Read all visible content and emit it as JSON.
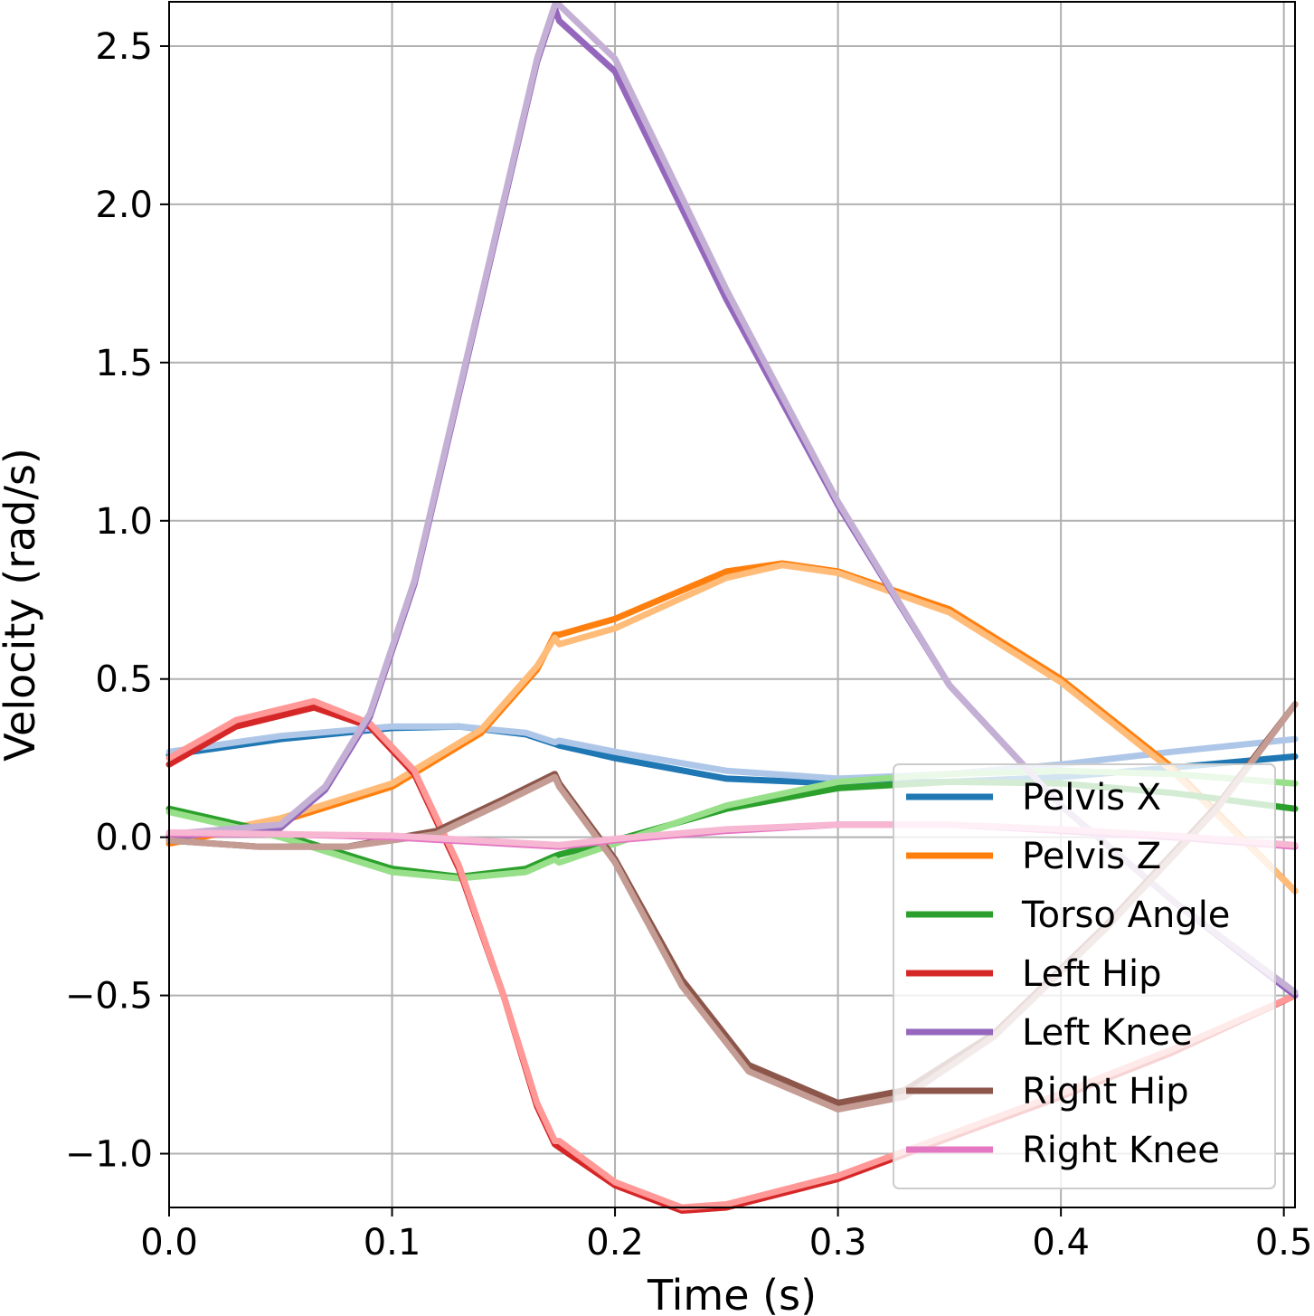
{
  "chart_data": {
    "type": "line",
    "xlabel": "Time (s)",
    "ylabel": "Velocity (rad/s)",
    "xlim": [
      0.0,
      0.505
    ],
    "ylim": [
      -1.17,
      2.64
    ],
    "xticks": [
      0.0,
      0.1,
      0.2,
      0.3,
      0.4,
      0.5
    ],
    "xtick_labels": [
      "0.0",
      "0.1",
      "0.2",
      "0.3",
      "0.4",
      "0.5"
    ],
    "yticks": [
      -1.0,
      -0.5,
      0.0,
      0.5,
      1.0,
      1.5,
      2.0,
      2.5
    ],
    "ytick_labels": [
      "−1.0",
      "−0.5",
      "0.0",
      "0.5",
      "1.0",
      "1.5",
      "2.0",
      "2.5"
    ],
    "grid": true,
    "legend_position": "lower-right",
    "series": [
      {
        "name": "Pelvis X",
        "color": "#1f77b4",
        "light_color": "#aec7e8",
        "dark": {
          "x": [
            0,
            0.05,
            0.1,
            0.13,
            0.16,
            0.173,
            0.175,
            0.2,
            0.25,
            0.3,
            0.35,
            0.4,
            0.45,
            0.505
          ],
          "y": [
            0.26,
            0.31,
            0.345,
            0.35,
            0.325,
            0.295,
            0.29,
            0.25,
            0.185,
            0.17,
            0.175,
            0.19,
            0.22,
            0.255
          ]
        },
        "light": {
          "x": [
            0,
            0.05,
            0.1,
            0.13,
            0.16,
            0.173,
            0.175,
            0.2,
            0.25,
            0.3,
            0.35,
            0.4,
            0.45,
            0.505
          ],
          "y": [
            0.27,
            0.32,
            0.35,
            0.35,
            0.33,
            0.3,
            0.305,
            0.27,
            0.21,
            0.185,
            0.2,
            0.23,
            0.27,
            0.31
          ]
        }
      },
      {
        "name": "Pelvis Z",
        "color": "#ff7f0e",
        "light_color": "#ffbb78",
        "dark": {
          "x": [
            0,
            0.05,
            0.1,
            0.14,
            0.165,
            0.173,
            0.175,
            0.2,
            0.25,
            0.275,
            0.3,
            0.35,
            0.4,
            0.45,
            0.505
          ],
          "y": [
            -0.02,
            0.05,
            0.16,
            0.33,
            0.53,
            0.64,
            0.64,
            0.69,
            0.84,
            0.865,
            0.84,
            0.72,
            0.5,
            0.22,
            -0.17
          ]
        },
        "light": {
          "x": [
            0,
            0.05,
            0.1,
            0.14,
            0.165,
            0.173,
            0.175,
            0.2,
            0.25,
            0.275,
            0.3,
            0.35,
            0.4,
            0.45,
            0.505
          ],
          "y": [
            -0.01,
            0.06,
            0.17,
            0.34,
            0.54,
            0.63,
            0.61,
            0.66,
            0.82,
            0.86,
            0.835,
            0.71,
            0.49,
            0.21,
            -0.17
          ]
        }
      },
      {
        "name": "Torso Angle",
        "color": "#2ca02c",
        "light_color": "#98df8a",
        "dark": {
          "x": [
            0,
            0.05,
            0.1,
            0.13,
            0.16,
            0.173,
            0.175,
            0.2,
            0.25,
            0.3,
            0.35,
            0.4,
            0.45,
            0.505
          ],
          "y": [
            0.09,
            0.01,
            -0.1,
            -0.125,
            -0.1,
            -0.06,
            -0.055,
            -0.01,
            0.09,
            0.155,
            0.175,
            0.17,
            0.14,
            0.09
          ]
        },
        "light": {
          "x": [
            0,
            0.05,
            0.1,
            0.13,
            0.16,
            0.173,
            0.175,
            0.2,
            0.25,
            0.3,
            0.35,
            0.4,
            0.45,
            0.505
          ],
          "y": [
            0.08,
            0.0,
            -0.11,
            -0.13,
            -0.11,
            -0.07,
            -0.08,
            -0.02,
            0.1,
            0.175,
            0.2,
            0.21,
            0.2,
            0.17
          ]
        }
      },
      {
        "name": "Left Hip",
        "color": "#d62728",
        "light_color": "#ff9896",
        "dark": {
          "x": [
            0,
            0.03,
            0.065,
            0.09,
            0.11,
            0.13,
            0.15,
            0.165,
            0.173,
            0.175,
            0.2,
            0.23,
            0.25,
            0.3,
            0.35,
            0.4,
            0.45,
            0.505
          ],
          "y": [
            0.23,
            0.35,
            0.41,
            0.35,
            0.2,
            -0.1,
            -0.5,
            -0.85,
            -0.97,
            -0.98,
            -1.1,
            -1.18,
            -1.17,
            -1.08,
            -0.95,
            -0.82,
            -0.68,
            -0.5
          ]
        },
        "light": {
          "x": [
            0,
            0.03,
            0.065,
            0.09,
            0.11,
            0.13,
            0.15,
            0.165,
            0.173,
            0.175,
            0.2,
            0.23,
            0.25,
            0.3,
            0.35,
            0.4,
            0.45,
            0.505
          ],
          "y": [
            0.25,
            0.37,
            0.43,
            0.36,
            0.21,
            -0.09,
            -0.5,
            -0.84,
            -0.96,
            -0.96,
            -1.09,
            -1.17,
            -1.16,
            -1.07,
            -0.94,
            -0.81,
            -0.67,
            -0.5
          ]
        }
      },
      {
        "name": "Left Knee",
        "color": "#9467bd",
        "light_color": "#c5b0d5",
        "dark": {
          "x": [
            0,
            0.05,
            0.07,
            0.09,
            0.11,
            0.13,
            0.15,
            0.165,
            0.173,
            0.175,
            0.2,
            0.25,
            0.3,
            0.35,
            0.4,
            0.45,
            0.505
          ],
          "y": [
            0.0,
            0.03,
            0.15,
            0.38,
            0.8,
            1.4,
            2.0,
            2.45,
            2.62,
            2.58,
            2.42,
            1.7,
            1.05,
            0.48,
            0.1,
            -0.2,
            -0.5
          ]
        },
        "light": {
          "x": [
            0,
            0.05,
            0.07,
            0.09,
            0.11,
            0.13,
            0.15,
            0.165,
            0.173,
            0.175,
            0.2,
            0.25,
            0.3,
            0.35,
            0.4,
            0.45,
            0.505
          ],
          "y": [
            0.01,
            0.04,
            0.16,
            0.39,
            0.81,
            1.41,
            2.01,
            2.46,
            2.63,
            2.63,
            2.46,
            1.73,
            1.06,
            0.48,
            0.1,
            -0.2,
            -0.49
          ]
        }
      },
      {
        "name": "Right Hip",
        "color": "#8c564b",
        "light_color": "#c49c94",
        "dark": {
          "x": [
            0,
            0.04,
            0.08,
            0.12,
            0.15,
            0.173,
            0.175,
            0.2,
            0.23,
            0.26,
            0.3,
            0.33,
            0.37,
            0.42,
            0.47,
            0.505
          ],
          "y": [
            -0.01,
            -0.03,
            -0.03,
            0.02,
            0.12,
            0.2,
            0.17,
            -0.07,
            -0.45,
            -0.72,
            -0.84,
            -0.8,
            -0.62,
            -0.28,
            0.1,
            0.42
          ]
        },
        "light": {
          "x": [
            0,
            0.04,
            0.08,
            0.12,
            0.15,
            0.173,
            0.175,
            0.2,
            0.23,
            0.26,
            0.3,
            0.33,
            0.37,
            0.42,
            0.47,
            0.505
          ],
          "y": [
            -0.01,
            -0.03,
            -0.03,
            0.01,
            0.11,
            0.19,
            0.16,
            -0.08,
            -0.47,
            -0.74,
            -0.86,
            -0.82,
            -0.63,
            -0.29,
            0.09,
            0.42
          ]
        }
      },
      {
        "name": "Right Knee",
        "color": "#e377c2",
        "light_color": "#f7b6d2",
        "dark": {
          "x": [
            0,
            0.05,
            0.1,
            0.15,
            0.175,
            0.2,
            0.25,
            0.3,
            0.35,
            0.4,
            0.45,
            0.505
          ],
          "y": [
            0.01,
            0.01,
            0.0,
            -0.02,
            -0.03,
            -0.01,
            0.02,
            0.04,
            0.04,
            0.02,
            0.0,
            -0.03
          ]
        },
        "light": {
          "x": [
            0,
            0.05,
            0.1,
            0.15,
            0.175,
            0.2,
            0.25,
            0.3,
            0.35,
            0.4,
            0.45,
            0.505
          ],
          "y": [
            0.015,
            0.01,
            0.005,
            -0.015,
            -0.025,
            -0.005,
            0.025,
            0.04,
            0.04,
            0.025,
            0.005,
            -0.025
          ]
        }
      }
    ]
  }
}
